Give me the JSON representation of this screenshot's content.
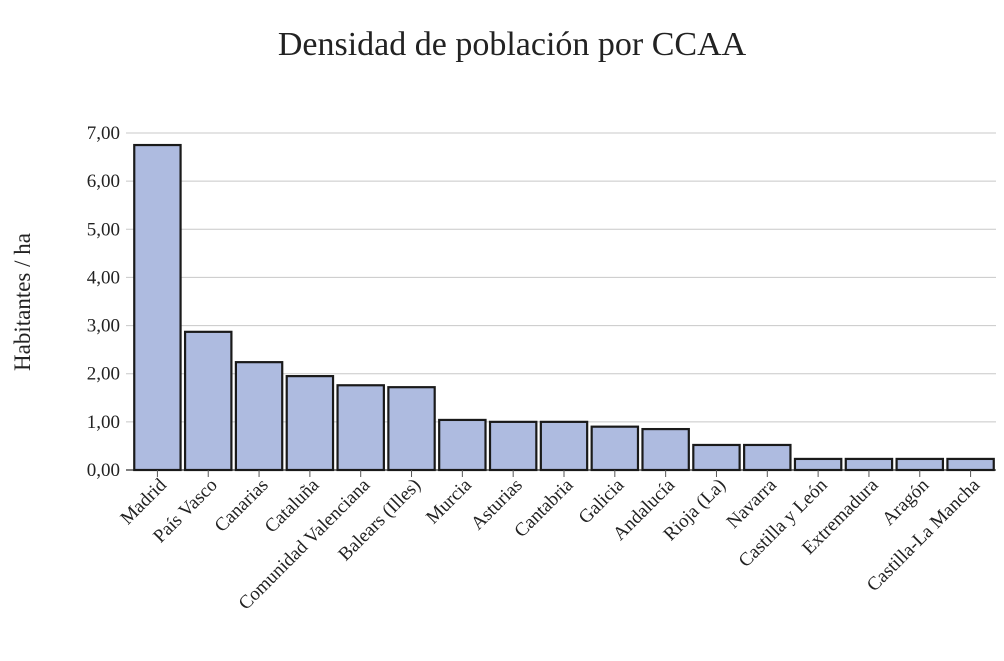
{
  "chart_data": {
    "type": "bar",
    "title": "Densidad de población por CCAA",
    "xlabel": "",
    "ylabel": "Habitantes / ha",
    "ylim": [
      0,
      7
    ],
    "yticks": [
      "0,00",
      "1,00",
      "2,00",
      "3,00",
      "4,00",
      "5,00",
      "6,00",
      "7,00"
    ],
    "grid": true,
    "legend": "none",
    "categories": [
      "Madrid",
      "País Vasco",
      "Canarias",
      "Cataluña",
      "Comunidad Valenciana",
      "Balears (Illes)",
      "Murcia",
      "Asturias",
      "Cantabria",
      "Galicia",
      "Andalucía",
      "Rioja (La)",
      "Navarra",
      "Castilla y León",
      "Extremadura",
      "Aragón",
      "Castilla-La Mancha"
    ],
    "values": [
      6.75,
      2.87,
      2.24,
      1.95,
      1.76,
      1.72,
      1.04,
      1.0,
      1.0,
      0.9,
      0.85,
      0.52,
      0.52,
      0.23,
      0.23,
      0.23,
      0.23
    ],
    "colors": {
      "bar_fill": "#aebbe0",
      "bar_stroke": "#1a1a1a",
      "grid": "#c8c8c8",
      "axis": "#555555"
    }
  }
}
